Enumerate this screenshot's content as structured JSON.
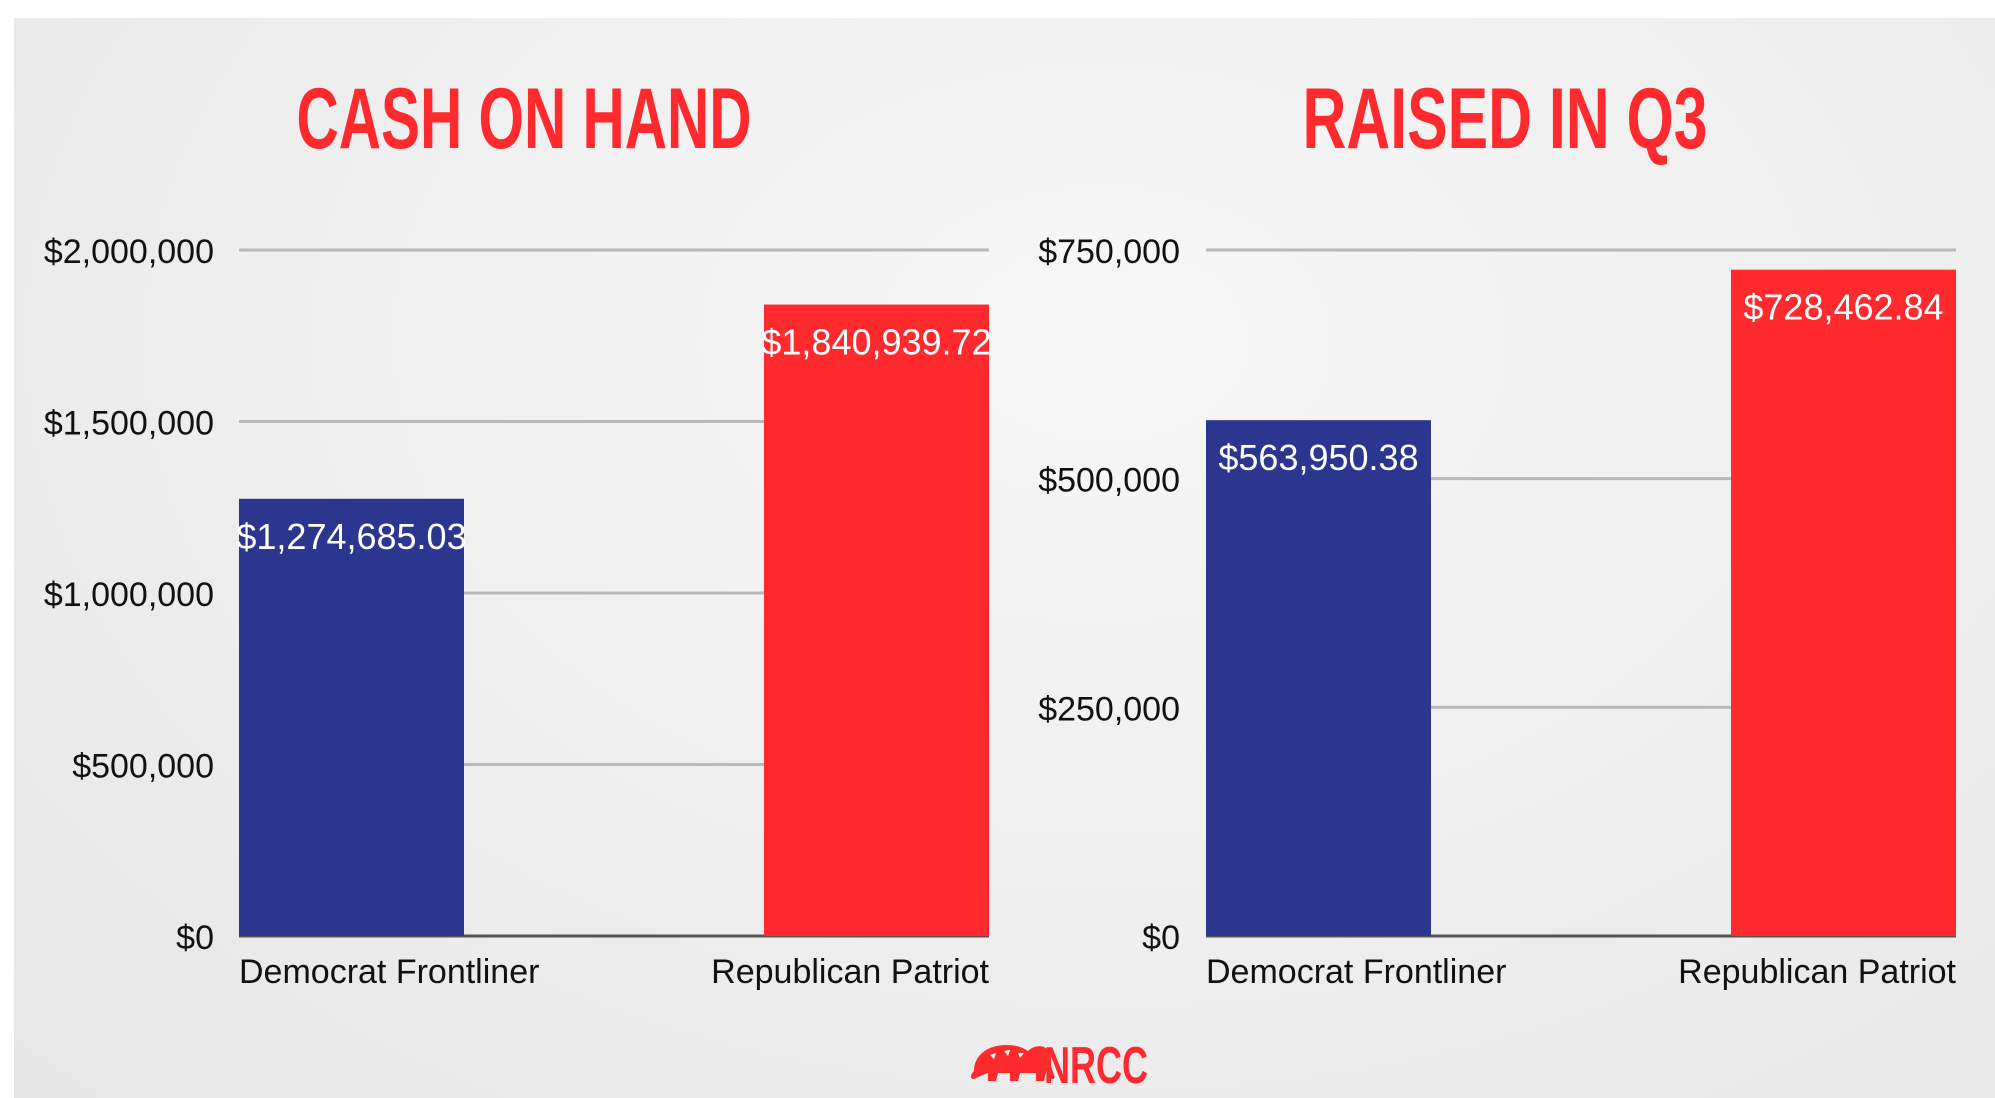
{
  "colors": {
    "democrat": "#2b378e",
    "republican": "#ff2a2e",
    "title": "#ff2a2e",
    "grid": "#b9b9b9",
    "axis": "#555555"
  },
  "chart_data": [
    {
      "type": "bar",
      "title": "CASH ON HAND",
      "xlabel": "",
      "ylabel": "",
      "categories": [
        "Democrat Frontliner",
        "Republican Patriot"
      ],
      "values": [
        1274685.03,
        1840939.72
      ],
      "data_labels": [
        "$1,274,685.03",
        "$1,840,939.72"
      ],
      "bar_colors": [
        "#2b378e",
        "#ff2a2e"
      ],
      "ylim": [
        0,
        2000000
      ],
      "yticks": [
        0,
        500000,
        1000000,
        1500000,
        2000000
      ],
      "ytick_labels": [
        "$0",
        "$500,000",
        "$1,000,000",
        "$1,500,000",
        "$2,000,000"
      ],
      "grid": true,
      "legend": "none"
    },
    {
      "type": "bar",
      "title": "RAISED IN Q3",
      "xlabel": "",
      "ylabel": "",
      "categories": [
        "Democrat Frontliner",
        "Republican Patriot"
      ],
      "values": [
        563950.38,
        728462.84
      ],
      "data_labels": [
        "$563,950.38",
        "$728,462.84"
      ],
      "bar_colors": [
        "#2b378e",
        "#ff2a2e"
      ],
      "ylim": [
        0,
        750000
      ],
      "yticks": [
        0,
        250000,
        500000,
        750000
      ],
      "ytick_labels": [
        "$0",
        "$250,000",
        "$500,000",
        "$750,000"
      ],
      "grid": true,
      "legend": "none"
    }
  ],
  "logo": {
    "text": "NRCC",
    "icon": "elephant-icon"
  }
}
